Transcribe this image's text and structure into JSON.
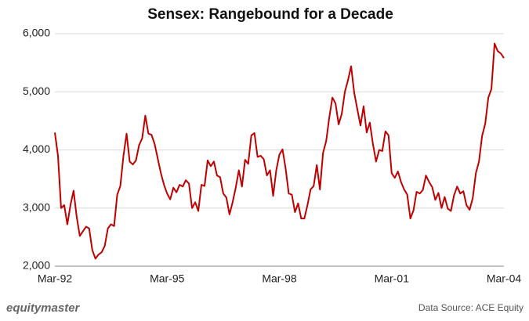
{
  "chart_data": {
    "type": "line",
    "title": "Sensex: Rangebound for a Decade",
    "categories": [
      "Mar-92",
      null,
      null,
      null,
      null,
      null,
      null,
      null,
      null,
      null,
      null,
      null,
      null,
      null,
      null,
      null,
      null,
      null,
      null,
      null,
      null,
      null,
      null,
      null,
      null,
      null,
      null,
      null,
      null,
      null,
      null,
      null,
      null,
      null,
      null,
      null,
      "Mar-95",
      null,
      null,
      null,
      null,
      null,
      null,
      null,
      null,
      null,
      null,
      null,
      null,
      null,
      null,
      null,
      null,
      null,
      null,
      null,
      null,
      null,
      null,
      null,
      null,
      null,
      null,
      null,
      null,
      null,
      null,
      null,
      null,
      null,
      null,
      null,
      "Mar-98",
      null,
      null,
      null,
      null,
      null,
      null,
      null,
      null,
      null,
      null,
      null,
      null,
      null,
      null,
      null,
      null,
      null,
      null,
      null,
      null,
      null,
      null,
      null,
      null,
      null,
      null,
      null,
      null,
      null,
      null,
      null,
      null,
      null,
      null,
      null,
      "Mar-01",
      null,
      null,
      null,
      null,
      null,
      null,
      null,
      null,
      null,
      null,
      null,
      null,
      null,
      null,
      null,
      null,
      null,
      null,
      null,
      null,
      null,
      null,
      null,
      null,
      null,
      null,
      null,
      null,
      null,
      null,
      null,
      null,
      null,
      null,
      null,
      "Mar-04"
    ],
    "values": [
      4300,
      3900,
      3000,
      3050,
      2720,
      3050,
      3300,
      2850,
      2520,
      2600,
      2680,
      2650,
      2280,
      2130,
      2200,
      2240,
      2350,
      2650,
      2720,
      2690,
      3230,
      3380,
      3900,
      4280,
      3800,
      3750,
      3820,
      4080,
      4200,
      4590,
      4280,
      4260,
      4100,
      3850,
      3600,
      3400,
      3250,
      3150,
      3350,
      3270,
      3400,
      3370,
      3480,
      3420,
      3000,
      3100,
      2950,
      3400,
      3380,
      3820,
      3720,
      3800,
      3560,
      3530,
      3250,
      3180,
      2890,
      3100,
      3350,
      3650,
      3370,
      3830,
      3760,
      4250,
      4290,
      3880,
      3900,
      3840,
      3560,
      3650,
      3210,
      3650,
      3920,
      4010,
      3680,
      3250,
      3230,
      2930,
      3080,
      2820,
      2820,
      3050,
      3320,
      3380,
      3740,
      3320,
      3950,
      4150,
      4560,
      4900,
      4800,
      4440,
      4620,
      5000,
      5200,
      5440,
      4980,
      4700,
      4420,
      4750,
      4300,
      4470,
      4100,
      3800,
      4000,
      3980,
      4320,
      4250,
      3600,
      3520,
      3630,
      3450,
      3320,
      3230,
      2820,
      2960,
      3280,
      3250,
      3310,
      3560,
      3450,
      3360,
      3140,
      3260,
      3000,
      3190,
      2990,
      2950,
      3220,
      3370,
      3250,
      3290,
      3050,
      2970,
      3170,
      3600,
      3800,
      4240,
      4450,
      4900,
      5050,
      5830,
      5700,
      5660,
      5580
    ],
    "color": "#c00000",
    "ylim": [
      2000,
      6000
    ],
    "yticks": [
      {
        "value": 2000,
        "label": "2,000"
      },
      {
        "value": 3000,
        "label": "3,000"
      },
      {
        "value": 4000,
        "label": "4,000"
      },
      {
        "value": 5000,
        "label": "5,000"
      },
      {
        "value": 6000,
        "label": "6,000"
      }
    ],
    "grid": true
  },
  "footer": {
    "logo": "equitymaster",
    "source": "Data Source: ACE Equity"
  }
}
